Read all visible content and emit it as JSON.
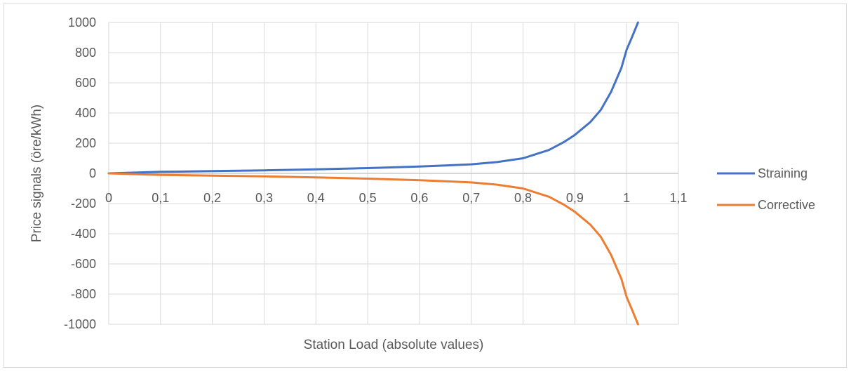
{
  "chart_data": {
    "type": "line",
    "title": "",
    "xlabel": "Station Load (absolute values)",
    "ylabel": "Price signals (öre/kWh)",
    "xlim": [
      0,
      1.1
    ],
    "ylim": [
      -1000,
      1000
    ],
    "x_ticks": [
      "0",
      "0,1",
      "0,2",
      "0,3",
      "0,4",
      "0,5",
      "0,6",
      "0,7",
      "0,8",
      "0,9",
      "1",
      "1,1"
    ],
    "y_ticks": [
      "1000",
      "800",
      "600",
      "400",
      "200",
      "0",
      "-200",
      "-400",
      "-600",
      "-800",
      "-1000"
    ],
    "grid": true,
    "legend_position": "right",
    "series": [
      {
        "name": "Straining",
        "color": "#4472C4",
        "x": [
          0,
          0.1,
          0.2,
          0.3,
          0.4,
          0.5,
          0.55,
          0.6,
          0.65,
          0.7,
          0.75,
          0.8,
          0.85,
          0.88,
          0.9,
          0.93,
          0.95,
          0.97,
          0.99,
          1.0,
          1.01,
          1.022
        ],
        "y": [
          0,
          10,
          15,
          20,
          27,
          35,
          40,
          45,
          52,
          60,
          75,
          100,
          155,
          210,
          255,
          340,
          420,
          540,
          700,
          820,
          900,
          1000
        ]
      },
      {
        "name": "Corrective",
        "color": "#ED7D31",
        "x": [
          0,
          0.1,
          0.2,
          0.3,
          0.4,
          0.5,
          0.55,
          0.6,
          0.65,
          0.7,
          0.75,
          0.8,
          0.85,
          0.88,
          0.9,
          0.93,
          0.95,
          0.97,
          0.99,
          1.0,
          1.01,
          1.022
        ],
        "y": [
          0,
          -10,
          -15,
          -20,
          -27,
          -35,
          -40,
          -45,
          -52,
          -60,
          -75,
          -100,
          -155,
          -210,
          -255,
          -340,
          -420,
          -540,
          -700,
          -820,
          -900,
          -1000
        ]
      }
    ]
  }
}
